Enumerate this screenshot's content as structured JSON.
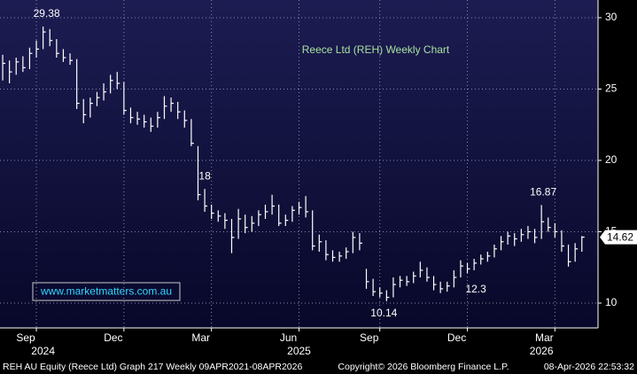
{
  "chart_data": {
    "type": "hlc",
    "title": "Reece Ltd (REH) Weekly Chart",
    "watermark": "www.marketmatters.com.au",
    "footer_left": "REH AU Equity (Reece Ltd) Graph 217 Weekly 09APR2021-08APR2026",
    "footer_center": "Copyright© 2026 Bloomberg Finance L.P.",
    "footer_right": "08-Apr-2026 22:53:32",
    "color": "#ffffff",
    "grid": true,
    "ylim": [
      8.26,
      31.24
    ],
    "yticks": [
      10,
      15,
      20,
      25,
      30
    ],
    "xlim": [
      -0.4,
      88.4
    ],
    "xticks": [
      {
        "value": 5,
        "label": "Sep"
      },
      {
        "value": 18,
        "label": "Dec"
      },
      {
        "value": 31,
        "label": "Mar"
      },
      {
        "value": 44,
        "label": "Jun"
      },
      {
        "value": 56,
        "label": "Sep"
      },
      {
        "value": 69,
        "label": "Dec"
      },
      {
        "value": 82,
        "label": "Mar"
      }
    ],
    "year_ticks": [
      {
        "value": 6,
        "label": "2024"
      },
      {
        "value": 44,
        "label": "2025"
      },
      {
        "value": 80,
        "label": "2026"
      }
    ],
    "high": [
      27.4,
      27.0,
      27.2,
      27.3,
      27.9,
      28.4,
      29.38,
      29.2,
      28.5,
      27.8,
      27.5,
      27.1,
      24.3,
      24.4,
      24.8,
      25.4,
      26.0,
      26.2,
      25.5,
      23.7,
      23.4,
      23.2,
      23.0,
      23.4,
      24.5,
      24.4,
      24.1,
      23.5,
      22.9,
      21.0,
      18.0,
      16.9,
      16.5,
      16.3,
      15.9,
      16.6,
      16.2,
      16.1,
      16.5,
      16.9,
      17.59,
      16.9,
      16.2,
      16.8,
      17.1,
      17.5,
      16.5,
      14.8,
      14.4,
      13.7,
      13.6,
      13.9,
      15.0,
      14.9,
      12.4,
      11.7,
      11.1,
      10.9,
      11.8,
      11.9,
      11.9,
      12.2,
      12.9,
      12.5,
      11.9,
      11.5,
      11.5,
      12.3,
      13.0,
      12.8,
      13.1,
      13.4,
      13.6,
      14.1,
      14.7,
      15.0,
      14.9,
      15.2,
      15.4,
      15.2,
      16.87,
      16.0,
      15.6,
      15.1,
      14.1,
      14.2,
      14.7
    ],
    "low": [
      25.6,
      25.4,
      26.0,
      26.2,
      26.4,
      27.2,
      27.8,
      28.0,
      27.2,
      26.9,
      26.7,
      23.6,
      22.6,
      23.0,
      23.8,
      24.2,
      24.7,
      25.0,
      23.2,
      22.6,
      22.5,
      22.3,
      22.0,
      22.3,
      22.9,
      23.4,
      22.9,
      22.3,
      21.0,
      17.2,
      16.4,
      15.9,
      15.7,
      15.2,
      13.5,
      14.5,
      14.9,
      15.0,
      15.4,
      15.9,
      16.2,
      15.4,
      15.4,
      15.7,
      16.2,
      16.0,
      13.7,
      13.6,
      13.0,
      12.9,
      12.9,
      13.1,
      13.5,
      13.7,
      11.0,
      10.5,
      10.4,
      10.14,
      10.4,
      11.1,
      11.2,
      11.4,
      11.8,
      11.5,
      10.9,
      10.7,
      10.8,
      11.1,
      11.8,
      12.1,
      12.3,
      12.7,
      12.9,
      13.2,
      13.7,
      14.1,
      14.0,
      14.3,
      14.5,
      14.2,
      14.5,
      15.0,
      14.6,
      13.6,
      12.55,
      12.9,
      13.6
    ],
    "close": [
      26.8,
      26.2,
      26.9,
      26.5,
      27.5,
      27.8,
      29.0,
      28.4,
      27.5,
      27.2,
      27.0,
      24.0,
      23.2,
      24.0,
      24.4,
      24.8,
      25.6,
      25.4,
      23.5,
      23.0,
      22.9,
      22.7,
      22.4,
      23.0,
      23.8,
      24.0,
      23.4,
      22.8,
      21.2,
      17.6,
      16.8,
      16.3,
      16.1,
      15.8,
      14.6,
      15.9,
      15.3,
      15.6,
      16.2,
      16.4,
      16.8,
      15.6,
      15.8,
      16.5,
      16.7,
      16.4,
      14.0,
      14.3,
      13.4,
      13.2,
      13.3,
      13.6,
      14.6,
      14.2,
      11.5,
      10.8,
      10.7,
      10.4,
      11.3,
      11.6,
      11.5,
      11.9,
      12.3,
      11.8,
      11.3,
      11.0,
      11.2,
      11.8,
      12.6,
      12.4,
      12.8,
      13.1,
      13.3,
      13.8,
      14.3,
      14.7,
      14.5,
      14.8,
      15.0,
      14.6,
      15.7,
      15.3,
      15.0,
      14.0,
      12.9,
      13.8,
      14.62
    ]
  }
}
